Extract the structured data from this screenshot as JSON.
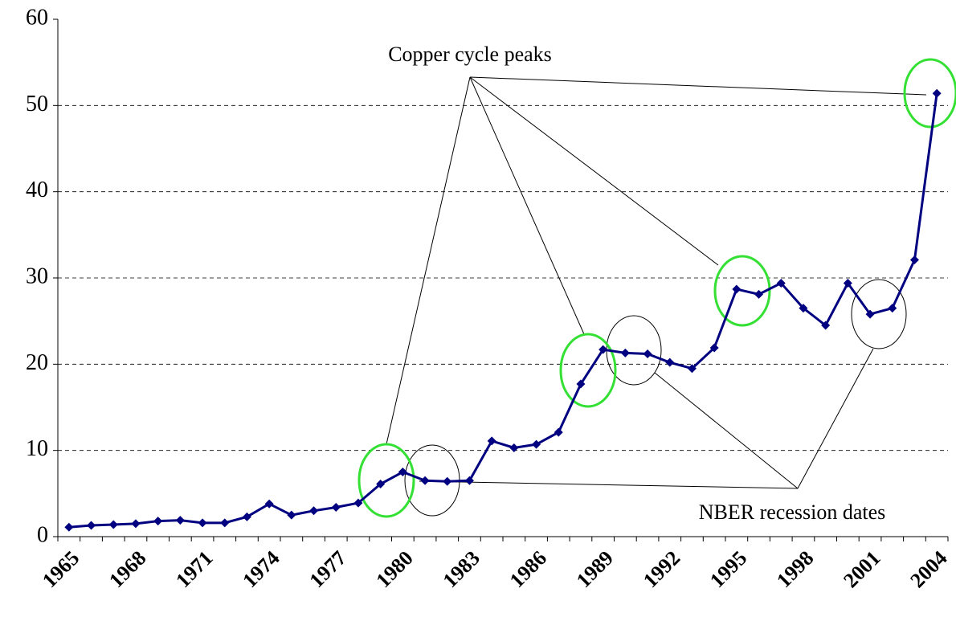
{
  "chart_data": {
    "type": "line",
    "categories": [
      "1965",
      null,
      null,
      "1968",
      null,
      null,
      "1971",
      null,
      null,
      "1974",
      null,
      null,
      "1977",
      null,
      null,
      "1980",
      null,
      null,
      "1983",
      null,
      null,
      "1986",
      null,
      null,
      "1989",
      null,
      null,
      "1992",
      null,
      null,
      "1995",
      null,
      null,
      "1998",
      null,
      null,
      "2001",
      null,
      null,
      "2004"
    ],
    "series": [
      {
        "color": "#000080",
        "values": [
          1.1,
          1.3,
          1.4,
          1.5,
          1.8,
          1.9,
          1.6,
          1.6,
          2.3,
          3.8,
          2.5,
          3.0,
          3.4,
          3.9,
          6.1,
          7.5,
          6.5,
          6.4,
          6.5,
          11.1,
          10.3,
          10.7,
          12.1,
          17.7,
          21.7,
          21.3,
          21.2,
          20.2,
          19.5,
          21.9,
          28.7,
          28.1,
          29.4,
          26.5,
          24.5,
          29.4,
          25.8,
          26.5,
          32.1,
          51.4
        ]
      }
    ],
    "ylim": [
      0,
      60
    ],
    "yticks": [
      0,
      10,
      20,
      30,
      40,
      50,
      60
    ],
    "grid": true,
    "annotations": [
      "Copper cycle peaks",
      "NBER recession dates"
    ]
  }
}
